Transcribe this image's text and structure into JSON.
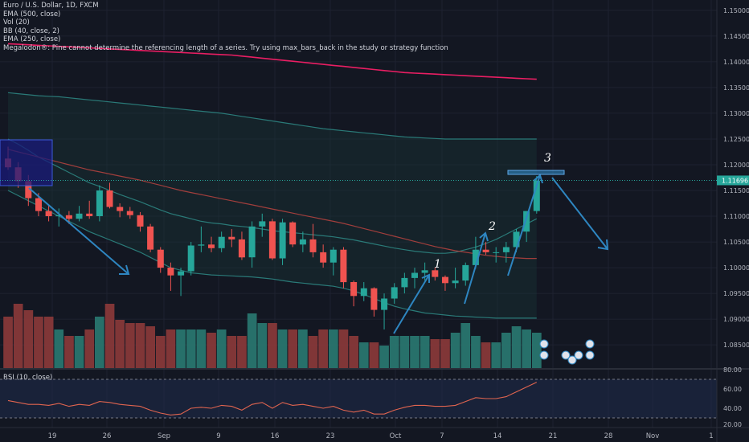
{
  "legend": {
    "symbol": "Euro / U.S. Dollar, 1D, FXCM",
    "ema500": "EMA (500, close)",
    "vol": "Vol (20)",
    "bb": "BB (40, close, 2)",
    "ema250": "EMA (250, close)",
    "megalodon_warning": "Megalodon®: Pine cannot determine the referencing length of a series. Try using max_bars_back in the study or strategy function"
  },
  "rsi_label": "RSI (10, close)",
  "colors": {
    "background": "#131722",
    "bull": "#26a69a",
    "bear": "#ef5350",
    "ema500": "#e91e63",
    "bb": "#2a7a78",
    "ema250": "#b0413e",
    "rsi": "#e0644f",
    "arrows": "#2e86c1",
    "price_tag": "#2962ff"
  },
  "annotations": {
    "wave1": "1",
    "wave2": "2",
    "wave3": "3"
  },
  "chart_data": [
    {
      "type": "candlestick",
      "title": "Euro / U.S. Dollar, 1D, FXCM",
      "ylim": [
        1.0805,
        1.152
      ],
      "y_ticks": [
        "1.15000",
        "1.14500",
        "1.14000",
        "1.13500",
        "1.13000",
        "1.12500",
        "1.12000",
        "1.11500",
        "1.11000",
        "1.10500",
        "1.10000",
        "1.09500",
        "1.09000",
        "1.08500"
      ],
      "x_ticks": [
        "19",
        "26",
        "Sep",
        "9",
        "16",
        "23",
        "Oct",
        "7",
        "14",
        "21",
        "28",
        "Nov",
        "1"
      ],
      "last_price": "1.11696",
      "candles": [
        {
          "o": 1.1212,
          "h": 1.1235,
          "l": 1.119,
          "c": 1.1195
        },
        {
          "o": 1.1195,
          "h": 1.1205,
          "l": 1.1155,
          "c": 1.1168
        },
        {
          "o": 1.1168,
          "h": 1.118,
          "l": 1.112,
          "c": 1.1135
        },
        {
          "o": 1.1135,
          "h": 1.1145,
          "l": 1.11,
          "c": 1.111
        },
        {
          "o": 1.111,
          "h": 1.1122,
          "l": 1.109,
          "c": 1.11
        },
        {
          "o": 1.11,
          "h": 1.1115,
          "l": 1.108,
          "c": 1.1102
        },
        {
          "o": 1.1102,
          "h": 1.111,
          "l": 1.1085,
          "c": 1.1095
        },
        {
          "o": 1.1095,
          "h": 1.112,
          "l": 1.109,
          "c": 1.1105
        },
        {
          "o": 1.1105,
          "h": 1.113,
          "l": 1.1095,
          "c": 1.11
        },
        {
          "o": 1.11,
          "h": 1.116,
          "l": 1.109,
          "c": 1.115
        },
        {
          "o": 1.115,
          "h": 1.1165,
          "l": 1.1115,
          "c": 1.1118
        },
        {
          "o": 1.1118,
          "h": 1.1125,
          "l": 1.1098,
          "c": 1.111
        },
        {
          "o": 1.111,
          "h": 1.1118,
          "l": 1.1095,
          "c": 1.1102
        },
        {
          "o": 1.1102,
          "h": 1.1108,
          "l": 1.107,
          "c": 1.108
        },
        {
          "o": 1.108,
          "h": 1.1085,
          "l": 1.103,
          "c": 1.1035
        },
        {
          "o": 1.1035,
          "h": 1.104,
          "l": 1.099,
          "c": 1.1
        },
        {
          "o": 1.1,
          "h": 1.101,
          "l": 1.0955,
          "c": 1.0985
        },
        {
          "o": 1.0985,
          "h": 1.1,
          "l": 1.0945,
          "c": 1.0993
        },
        {
          "o": 1.0993,
          "h": 1.105,
          "l": 1.0985,
          "c": 1.1043
        },
        {
          "o": 1.1043,
          "h": 1.108,
          "l": 1.103,
          "c": 1.1045
        },
        {
          "o": 1.1045,
          "h": 1.106,
          "l": 1.103,
          "c": 1.1038
        },
        {
          "o": 1.1038,
          "h": 1.107,
          "l": 1.103,
          "c": 1.106
        },
        {
          "o": 1.106,
          "h": 1.1075,
          "l": 1.104,
          "c": 1.1055
        },
        {
          "o": 1.1055,
          "h": 1.107,
          "l": 1.1015,
          "c": 1.102
        },
        {
          "o": 1.102,
          "h": 1.109,
          "l": 1.1,
          "c": 1.108
        },
        {
          "o": 1.108,
          "h": 1.1105,
          "l": 1.106,
          "c": 1.109
        },
        {
          "o": 1.109,
          "h": 1.1095,
          "l": 1.1015,
          "c": 1.1018
        },
        {
          "o": 1.1018,
          "h": 1.1095,
          "l": 1.1005,
          "c": 1.1088
        },
        {
          "o": 1.1088,
          "h": 1.109,
          "l": 1.104,
          "c": 1.1045
        },
        {
          "o": 1.1045,
          "h": 1.107,
          "l": 1.103,
          "c": 1.1055
        },
        {
          "o": 1.1055,
          "h": 1.1085,
          "l": 1.102,
          "c": 1.103
        },
        {
          "o": 1.103,
          "h": 1.1045,
          "l": 1.1,
          "c": 1.101
        },
        {
          "o": 1.101,
          "h": 1.104,
          "l": 1.0985,
          "c": 1.1035
        },
        {
          "o": 1.1035,
          "h": 1.104,
          "l": 1.096,
          "c": 1.0972
        },
        {
          "o": 1.0972,
          "h": 1.0975,
          "l": 1.0925,
          "c": 1.0945
        },
        {
          "o": 1.0945,
          "h": 1.0972,
          "l": 1.0935,
          "c": 1.096
        },
        {
          "o": 1.096,
          "h": 1.0962,
          "l": 1.0905,
          "c": 1.0918
        },
        {
          "o": 1.0918,
          "h": 1.095,
          "l": 1.088,
          "c": 1.094
        },
        {
          "o": 1.094,
          "h": 1.097,
          "l": 1.093,
          "c": 1.0962
        },
        {
          "o": 1.0962,
          "h": 1.099,
          "l": 1.095,
          "c": 1.098
        },
        {
          "o": 1.098,
          "h": 1.1,
          "l": 1.096,
          "c": 1.099
        },
        {
          "o": 1.099,
          "h": 1.101,
          "l": 1.0975,
          "c": 1.0995
        },
        {
          "o": 1.0995,
          "h": 1.1,
          "l": 1.0975,
          "c": 1.0982
        },
        {
          "o": 1.0982,
          "h": 1.0985,
          "l": 1.0955,
          "c": 1.097
        },
        {
          "o": 1.097,
          "h": 1.1,
          "l": 1.096,
          "c": 1.0975
        },
        {
          "o": 1.0975,
          "h": 1.101,
          "l": 1.0965,
          "c": 1.1005
        },
        {
          "o": 1.1005,
          "h": 1.106,
          "l": 1.0998,
          "c": 1.1035
        },
        {
          "o": 1.1035,
          "h": 1.105,
          "l": 1.1025,
          "c": 1.103
        },
        {
          "o": 1.103,
          "h": 1.104,
          "l": 1.101,
          "c": 1.103
        },
        {
          "o": 1.103,
          "h": 1.105,
          "l": 1.101,
          "c": 1.104
        },
        {
          "o": 1.104,
          "h": 1.1075,
          "l": 1.103,
          "c": 1.107
        },
        {
          "o": 1.107,
          "h": 1.111,
          "l": 1.105,
          "c": 1.111
        },
        {
          "o": 1.111,
          "h": 1.1178,
          "l": 1.1105,
          "c": 1.1169
        }
      ],
      "volume": [
        16,
        20,
        18,
        16,
        16,
        12,
        10,
        10,
        12,
        16,
        20,
        15,
        14,
        14,
        13,
        10,
        12,
        12,
        12,
        12,
        11,
        12,
        10,
        10,
        17,
        14,
        14,
        12,
        12,
        12,
        10,
        12,
        12,
        12,
        10,
        8,
        8,
        7,
        10,
        10,
        10,
        10,
        9,
        9,
        11,
        14,
        10,
        8,
        8,
        11,
        13,
        12,
        11
      ],
      "ema500": [
        1.1435,
        1.1434,
        1.1433,
        1.1432,
        1.1431,
        1.143,
        1.1429,
        1.1428,
        1.1427,
        1.1426,
        1.1425,
        1.1424,
        1.1423,
        1.1422,
        1.1421,
        1.142,
        1.1419,
        1.1418,
        1.1417,
        1.1416,
        1.1415,
        1.1414,
        1.1413,
        1.1411,
        1.1409,
        1.1407,
        1.1405,
        1.1403,
        1.1401,
        1.1399,
        1.1397,
        1.1395,
        1.1393,
        1.1391,
        1.1389,
        1.1387,
        1.1385,
        1.1383,
        1.1381,
        1.1379,
        1.1378,
        1.1377,
        1.1376,
        1.1375,
        1.1374,
        1.1373,
        1.1372,
        1.1371,
        1.137,
        1.1369,
        1.1368,
        1.1367,
        1.1366
      ],
      "ema250": [
        1.123,
        1.1225,
        1.122,
        1.1215,
        1.121,
        1.1205,
        1.12,
        1.1195,
        1.119,
        1.1186,
        1.1182,
        1.1178,
        1.1174,
        1.117,
        1.1165,
        1.116,
        1.1155,
        1.115,
        1.1146,
        1.1142,
        1.1138,
        1.1134,
        1.113,
        1.1126,
        1.1122,
        1.1118,
        1.1114,
        1.111,
        1.1106,
        1.1102,
        1.1098,
        1.1094,
        1.109,
        1.1086,
        1.1081,
        1.1076,
        1.1071,
        1.1066,
        1.1061,
        1.1056,
        1.1051,
        1.1046,
        1.1041,
        1.1037,
        1.1033,
        1.103,
        1.1027,
        1.1024,
        1.1022,
        1.102,
        1.1019,
        1.1018,
        1.1018
      ],
      "bb_upper": [
        1.134,
        1.1338,
        1.1336,
        1.1334,
        1.1333,
        1.1332,
        1.133,
        1.1328,
        1.1326,
        1.1324,
        1.1322,
        1.132,
        1.1318,
        1.1316,
        1.1314,
        1.1312,
        1.131,
        1.1308,
        1.1306,
        1.1304,
        1.1302,
        1.13,
        1.1297,
        1.1294,
        1.1291,
        1.1288,
        1.1285,
        1.1282,
        1.1279,
        1.1276,
        1.1273,
        1.127,
        1.1268,
        1.1266,
        1.1264,
        1.1262,
        1.126,
        1.1258,
        1.1256,
        1.1254,
        1.1253,
        1.1252,
        1.1251,
        1.125,
        1.125,
        1.125,
        1.125,
        1.125,
        1.125,
        1.125,
        1.125,
        1.125,
        1.125
      ],
      "bb_mid": [
        1.125,
        1.124,
        1.1228,
        1.1215,
        1.1205,
        1.1195,
        1.1185,
        1.1175,
        1.1165,
        1.1158,
        1.115,
        1.1142,
        1.1135,
        1.1128,
        1.112,
        1.1112,
        1.1105,
        1.11,
        1.1095,
        1.109,
        1.1087,
        1.1085,
        1.1082,
        1.108,
        1.1078,
        1.1075,
        1.1072,
        1.107,
        1.1068,
        1.1066,
        1.1064,
        1.1062,
        1.106,
        1.1057,
        1.1054,
        1.105,
        1.1046,
        1.1042,
        1.1038,
        1.1035,
        1.1032,
        1.103,
        1.1028,
        1.1028,
        1.103,
        1.1035,
        1.104,
        1.1047,
        1.1055,
        1.1065,
        1.1075,
        1.1085,
        1.1095
      ],
      "bb_lower": [
        1.115,
        1.114,
        1.113,
        1.112,
        1.111,
        1.11,
        1.109,
        1.108,
        1.107,
        1.1062,
        1.1054,
        1.1046,
        1.1038,
        1.103,
        1.102,
        1.101,
        1.1,
        1.0995,
        1.099,
        1.0988,
        1.0986,
        1.0985,
        1.0984,
        1.0983,
        1.0982,
        1.098,
        1.0978,
        1.0975,
        1.0972,
        1.097,
        1.0968,
        1.0966,
        1.0964,
        1.096,
        1.0955,
        1.0948,
        1.094,
        1.0932,
        1.0925,
        1.092,
        1.0916,
        1.0912,
        1.091,
        1.0908,
        1.0906,
        1.0905,
        1.0904,
        1.0903,
        1.0902,
        1.0902,
        1.0902,
        1.0902,
        1.0902
      ]
    },
    {
      "type": "line",
      "title": "RSI (10, close)",
      "ylim": [
        20,
        80
      ],
      "y_ticks": [
        "80.00",
        "60.00",
        "40.00",
        "20.00"
      ],
      "bands": [
        70,
        30
      ],
      "values": [
        48,
        46,
        44,
        44,
        43,
        45,
        42,
        44,
        43,
        47,
        46,
        44,
        43,
        42,
        38,
        35,
        33,
        34,
        40,
        41,
        40,
        43,
        42,
        38,
        44,
        46,
        40,
        46,
        43,
        44,
        42,
        40,
        42,
        38,
        36,
        38,
        34,
        34,
        38,
        41,
        43,
        43,
        42,
        42,
        43,
        47,
        51,
        50,
        50,
        52,
        57,
        62,
        67
      ]
    }
  ]
}
